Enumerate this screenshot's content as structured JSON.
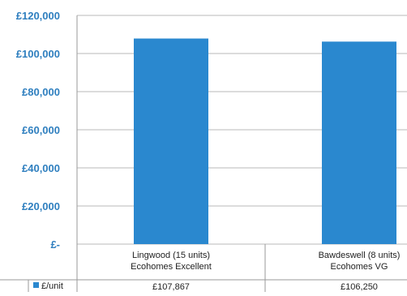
{
  "chart_data": {
    "type": "bar",
    "categories": [
      [
        "Lingwood (15 units)",
        "Ecohomes Excellent"
      ],
      [
        "Bawdeswell (8 units)",
        "Ecohomes VG"
      ]
    ],
    "series": [
      {
        "name": "£/unit",
        "values": [
          107867,
          106250
        ],
        "value_labels": [
          "£107,867",
          "£106,250"
        ]
      }
    ],
    "y_ticks": [
      "£-",
      "£20,000",
      "£40,000",
      "£60,000",
      "£80,000",
      "£100,000",
      "£120,000"
    ],
    "ylim": [
      0,
      120000
    ],
    "grid": true,
    "legend": "data-table",
    "colors": {
      "bar": "#2a88cf",
      "tick_text": "#2f7fbf",
      "grid": "#b8b8b8",
      "axis": "#9a9a9a"
    }
  }
}
